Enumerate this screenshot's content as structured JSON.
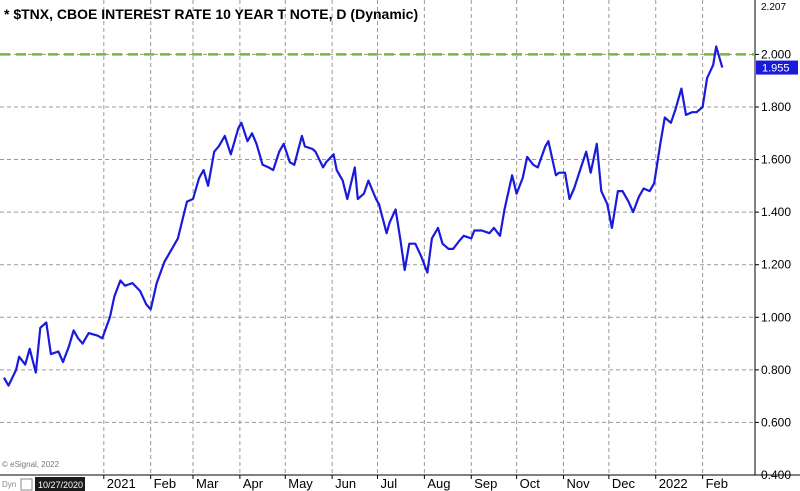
{
  "chart_data": {
    "type": "line",
    "title": "* $TNX, CBOE INTEREST RATE 10 YEAR T NOTE, D (Dynamic)",
    "xlabel": "",
    "ylabel": "",
    "ylim": [
      0.4,
      2.207
    ],
    "y_ticks": [
      "0.400",
      "0.600",
      "0.800",
      "1.000",
      "1.200",
      "1.400",
      "1.600",
      "1.800",
      "2.000"
    ],
    "y_top_label": "2.207",
    "x_ticks": [
      "2021",
      "Feb",
      "Mar",
      "Apr",
      "May",
      "Jun",
      "Jul",
      "Aug",
      "Sep",
      "Oct",
      "Nov",
      "Dec",
      "2022",
      "Feb"
    ],
    "grid": true,
    "reference_line": {
      "value": 2.0,
      "color": "#7cb342",
      "style": "dashed"
    },
    "last_value_label": "1.955",
    "series": [
      {
        "color": "#1a1adb",
        "points": [
          [
            "2020-10-27",
            0.77
          ],
          [
            "2020-10-30",
            0.74
          ],
          [
            "2020-11-04",
            0.8
          ],
          [
            "2020-11-06",
            0.85
          ],
          [
            "2020-11-10",
            0.82
          ],
          [
            "2020-11-13",
            0.88
          ],
          [
            "2020-11-17",
            0.79
          ],
          [
            "2020-11-20",
            0.96
          ],
          [
            "2020-11-24",
            0.98
          ],
          [
            "2020-11-27",
            0.86
          ],
          [
            "2020-12-02",
            0.87
          ],
          [
            "2020-12-05",
            0.83
          ],
          [
            "2020-12-09",
            0.89
          ],
          [
            "2020-12-12",
            0.95
          ],
          [
            "2020-12-15",
            0.92
          ],
          [
            "2020-12-18",
            0.9
          ],
          [
            "2020-12-22",
            0.94
          ],
          [
            "2020-12-28",
            0.93
          ],
          [
            "2020-12-31",
            0.92
          ],
          [
            "2021-01-05",
            1.0
          ],
          [
            "2021-01-08",
            1.08
          ],
          [
            "2021-01-12",
            1.14
          ],
          [
            "2021-01-15",
            1.12
          ],
          [
            "2021-01-20",
            1.13
          ],
          [
            "2021-01-25",
            1.1
          ],
          [
            "2021-01-29",
            1.05
          ],
          [
            "2021-02-01",
            1.03
          ],
          [
            "2021-02-05",
            1.13
          ],
          [
            "2021-02-10",
            1.21
          ],
          [
            "2021-02-16",
            1.27
          ],
          [
            "2021-02-19",
            1.3
          ],
          [
            "2021-02-22",
            1.37
          ],
          [
            "2021-02-25",
            1.44
          ],
          [
            "2021-03-01",
            1.45
          ],
          [
            "2021-03-05",
            1.53
          ],
          [
            "2021-03-08",
            1.56
          ],
          [
            "2021-03-11",
            1.5
          ],
          [
            "2021-03-15",
            1.63
          ],
          [
            "2021-03-18",
            1.65
          ],
          [
            "2021-03-22",
            1.69
          ],
          [
            "2021-03-26",
            1.62
          ],
          [
            "2021-03-31",
            1.72
          ],
          [
            "2021-04-02",
            1.74
          ],
          [
            "2021-04-06",
            1.67
          ],
          [
            "2021-04-09",
            1.7
          ],
          [
            "2021-04-12",
            1.66
          ],
          [
            "2021-04-16",
            1.58
          ],
          [
            "2021-04-20",
            1.57
          ],
          [
            "2021-04-23",
            1.56
          ],
          [
            "2021-04-27",
            1.63
          ],
          [
            "2021-04-30",
            1.66
          ],
          [
            "2021-05-04",
            1.59
          ],
          [
            "2021-05-07",
            1.58
          ],
          [
            "2021-05-12",
            1.69
          ],
          [
            "2021-05-14",
            1.65
          ],
          [
            "2021-05-19",
            1.64
          ],
          [
            "2021-05-21",
            1.63
          ],
          [
            "2021-05-26",
            1.57
          ],
          [
            "2021-05-28",
            1.59
          ],
          [
            "2021-06-02",
            1.62
          ],
          [
            "2021-06-04",
            1.56
          ],
          [
            "2021-06-08",
            1.52
          ],
          [
            "2021-06-11",
            1.45
          ],
          [
            "2021-06-16",
            1.57
          ],
          [
            "2021-06-18",
            1.45
          ],
          [
            "2021-06-22",
            1.47
          ],
          [
            "2021-06-25",
            1.52
          ],
          [
            "2021-06-30",
            1.45
          ],
          [
            "2021-07-02",
            1.43
          ],
          [
            "2021-07-07",
            1.32
          ],
          [
            "2021-07-09",
            1.36
          ],
          [
            "2021-07-13",
            1.41
          ],
          [
            "2021-07-16",
            1.3
          ],
          [
            "2021-07-19",
            1.18
          ],
          [
            "2021-07-22",
            1.28
          ],
          [
            "2021-07-26",
            1.28
          ],
          [
            "2021-07-30",
            1.23
          ],
          [
            "2021-08-03",
            1.17
          ],
          [
            "2021-08-06",
            1.3
          ],
          [
            "2021-08-10",
            1.34
          ],
          [
            "2021-08-13",
            1.28
          ],
          [
            "2021-08-17",
            1.26
          ],
          [
            "2021-08-20",
            1.26
          ],
          [
            "2021-08-24",
            1.29
          ],
          [
            "2021-08-27",
            1.31
          ],
          [
            "2021-09-01",
            1.3
          ],
          [
            "2021-09-03",
            1.33
          ],
          [
            "2021-09-08",
            1.33
          ],
          [
            "2021-09-13",
            1.32
          ],
          [
            "2021-09-16",
            1.34
          ],
          [
            "2021-09-20",
            1.31
          ],
          [
            "2021-09-23",
            1.41
          ],
          [
            "2021-09-28",
            1.54
          ],
          [
            "2021-10-01",
            1.47
          ],
          [
            "2021-10-05",
            1.53
          ],
          [
            "2021-10-08",
            1.61
          ],
          [
            "2021-10-12",
            1.58
          ],
          [
            "2021-10-15",
            1.57
          ],
          [
            "2021-10-20",
            1.65
          ],
          [
            "2021-10-22",
            1.67
          ],
          [
            "2021-10-27",
            1.54
          ],
          [
            "2021-10-29",
            1.55
          ],
          [
            "2021-11-02",
            1.55
          ],
          [
            "2021-11-05",
            1.45
          ],
          [
            "2021-11-08",
            1.49
          ],
          [
            "2021-11-12",
            1.56
          ],
          [
            "2021-11-16",
            1.63
          ],
          [
            "2021-11-19",
            1.55
          ],
          [
            "2021-11-23",
            1.66
          ],
          [
            "2021-11-26",
            1.48
          ],
          [
            "2021-11-30",
            1.43
          ],
          [
            "2021-12-03",
            1.34
          ],
          [
            "2021-12-07",
            1.48
          ],
          [
            "2021-12-10",
            1.48
          ],
          [
            "2021-12-14",
            1.44
          ],
          [
            "2021-12-17",
            1.4
          ],
          [
            "2021-12-21",
            1.46
          ],
          [
            "2021-12-24",
            1.49
          ],
          [
            "2021-12-28",
            1.48
          ],
          [
            "2021-12-31",
            1.51
          ],
          [
            "2022-01-04",
            1.66
          ],
          [
            "2022-01-07",
            1.76
          ],
          [
            "2022-01-11",
            1.74
          ],
          [
            "2022-01-14",
            1.79
          ],
          [
            "2022-01-18",
            1.87
          ],
          [
            "2022-01-21",
            1.77
          ],
          [
            "2022-01-25",
            1.78
          ],
          [
            "2022-01-28",
            1.78
          ],
          [
            "2022-02-01",
            1.8
          ],
          [
            "2022-02-04",
            1.91
          ],
          [
            "2022-02-08",
            1.96
          ],
          [
            "2022-02-10",
            2.03
          ],
          [
            "2022-02-14",
            1.95
          ]
        ]
      }
    ],
    "x_range": [
      "2020-10-27",
      "2022-03-05"
    ]
  },
  "footer": {
    "copyright": "© eSignal, 2022",
    "mode_label": "Dyn",
    "date_box": "10/27/2020"
  },
  "colors": {
    "background": "#ffffff",
    "grid": "#9a9a9a",
    "series": "#1a1adb",
    "reference": "#7cb342",
    "date_box": "#1a1a1a"
  }
}
